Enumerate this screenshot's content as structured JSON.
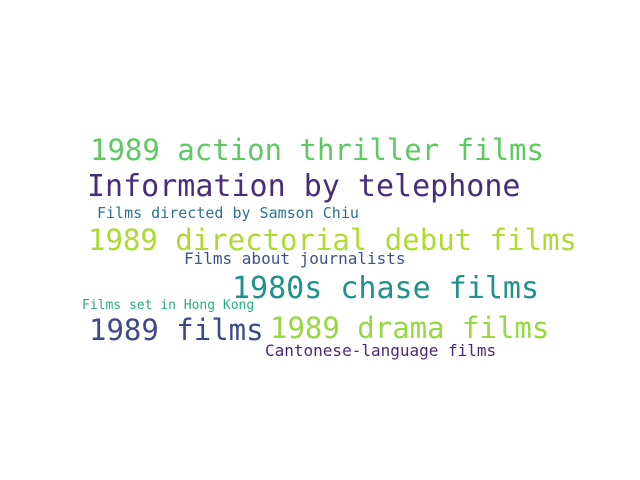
{
  "words": [
    {
      "text": "1989 action thriller films",
      "color": "#5ec962"
    },
    {
      "text": "Information by telephone",
      "color": "#472d7b"
    },
    {
      "text": "Films directed by Samson Chiu",
      "color": "#2c728e"
    },
    {
      "text": "1989 directorial debut films",
      "color": "#addc30"
    },
    {
      "text": "Films about journalists",
      "color": "#3b528b"
    },
    {
      "text": "1980s chase films",
      "color": "#21918c"
    },
    {
      "text": "Films set in Hong Kong",
      "color": "#28ae80"
    },
    {
      "text": "1989 films",
      "color": "#3e4989"
    },
    {
      "text": "1989 drama films",
      "color": "#95d840"
    },
    {
      "text": "Cantonese-language films",
      "color": "#482878"
    }
  ]
}
